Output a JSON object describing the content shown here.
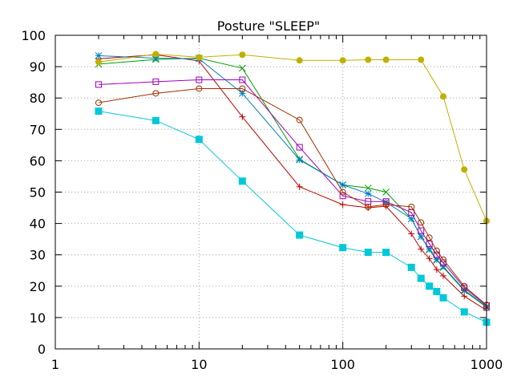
{
  "chart_data": {
    "type": "line",
    "title": "Posture \"SLEEP\"",
    "xlabel": "",
    "ylabel": "",
    "xscale": "log",
    "xlim": [
      1,
      1000
    ],
    "ylim": [
      0,
      100
    ],
    "grid": true,
    "legend": "none",
    "xticks": [
      1,
      10,
      100,
      1000
    ],
    "xtick_labels": [
      "1",
      "10",
      "100",
      "1000"
    ],
    "yticks": [
      0,
      10,
      20,
      30,
      40,
      50,
      60,
      70,
      80,
      90,
      100
    ],
    "ytick_labels": [
      "0",
      "10",
      "20",
      "30",
      "40",
      "50",
      "60",
      "70",
      "80",
      "90",
      "100"
    ],
    "series": [
      {
        "name": "series-1",
        "color": "#c00000",
        "marker": "plus",
        "x": [
          2,
          5,
          10,
          20,
          50,
          100,
          150,
          200,
          300,
          350,
          400,
          450,
          500,
          700,
          1000
        ],
        "y": [
          92.5,
          93.8,
          91.8,
          74,
          51.7,
          46,
          45,
          45.5,
          36.7,
          31.8,
          28.8,
          25.3,
          23.3,
          16.8,
          12.3
        ]
      },
      {
        "name": "series-2",
        "color": "#00a000",
        "marker": "cross",
        "x": [
          2,
          5,
          10,
          20,
          50,
          100,
          150,
          200,
          300,
          350,
          400,
          450,
          500,
          700,
          1000
        ],
        "y": [
          90.8,
          92.3,
          92.7,
          89.5,
          60.5,
          52.3,
          51.3,
          50,
          41.5,
          35.8,
          31.6,
          28.3,
          26,
          18.5,
          13.3
        ]
      },
      {
        "name": "series-3",
        "color": "#0080c0",
        "marker": "star",
        "x": [
          2,
          5,
          10,
          20,
          50,
          100,
          150,
          200,
          300,
          350,
          400,
          450,
          500,
          700,
          1000
        ],
        "y": [
          93.5,
          92.7,
          92.5,
          81.5,
          60.3,
          52.3,
          49.5,
          46.8,
          41.5,
          35.8,
          31.8,
          28.5,
          26.3,
          18.8,
          13.5
        ]
      },
      {
        "name": "series-4",
        "color": "#a000c0",
        "marker": "open-square",
        "x": [
          2,
          5,
          10,
          20,
          50,
          100,
          150,
          200,
          300,
          350,
          400,
          450,
          500,
          700,
          1000
        ],
        "y": [
          84.3,
          85.2,
          85.8,
          85.8,
          64.3,
          48.8,
          47,
          47,
          43.5,
          37.7,
          33.5,
          30,
          27.5,
          19.5,
          13.8
        ]
      },
      {
        "name": "series-5",
        "color": "#a03000",
        "marker": "open-circle",
        "x": [
          2,
          5,
          10,
          20,
          50,
          100,
          150,
          200,
          300,
          350,
          400,
          450,
          500,
          700,
          1000
        ],
        "y": [
          78.5,
          81.5,
          83,
          83,
          73,
          50,
          45.3,
          46,
          45.3,
          40.3,
          35.5,
          31.3,
          28.5,
          20,
          14
        ]
      },
      {
        "name": "series-6",
        "color": "#c0b000",
        "marker": "filled-circle",
        "x": [
          2,
          5,
          10,
          20,
          50,
          100,
          150,
          200,
          350,
          500,
          700,
          1000
        ],
        "y": [
          91.5,
          94,
          93,
          93.8,
          92,
          92,
          92.2,
          92.2,
          92.2,
          80.5,
          57.2,
          40.8
        ]
      },
      {
        "name": "series-7",
        "color": "#00c8d8",
        "marker": "filled-square",
        "x": [
          2,
          5,
          10,
          20,
          50,
          100,
          150,
          200,
          300,
          350,
          400,
          450,
          500,
          700,
          1000
        ],
        "y": [
          75.8,
          72.8,
          66.8,
          53.5,
          36.3,
          32.3,
          30.8,
          30.8,
          26,
          22.5,
          20,
          18.3,
          16.3,
          11.8,
          8.5
        ]
      }
    ]
  }
}
